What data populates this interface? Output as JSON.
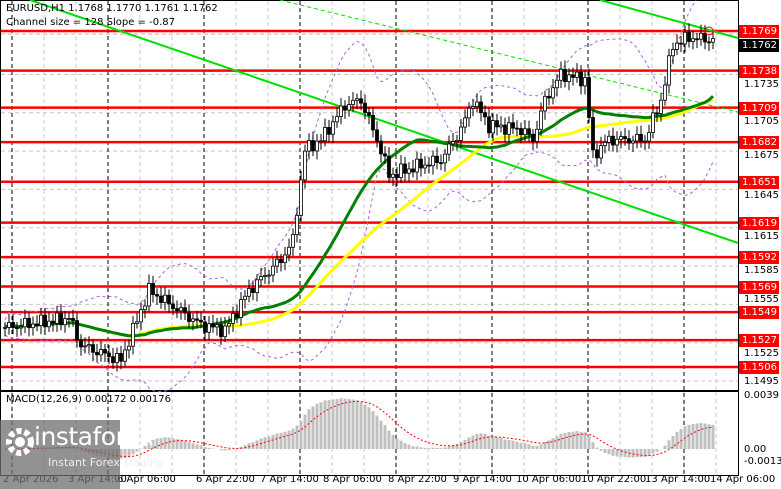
{
  "header": {
    "symbol_line": "EURUSD,H1  1.1768 1.1770 1.1761 1.1762",
    "channel_line": "Channel size = 128 Slope = -0.87"
  },
  "colors": {
    "level": "#ff0000",
    "fast_ma": "#008000",
    "slow_ma": "#ffff00",
    "channel": "#00e000",
    "bollinger": "#b060e0",
    "macd_hist": "#c0c0c0",
    "macd_signal": "#ff0000"
  },
  "price_axis": {
    "current_price": "1.1762",
    "levels": [
      "1.1769",
      "1.1738",
      "1.1709",
      "1.1682",
      "1.1651",
      "1.1619",
      "1.1592",
      "1.1569",
      "1.1549",
      "1.1527",
      "1.1506"
    ],
    "ticks": [
      "1.1735",
      "1.1705",
      "1.1675",
      "1.1645",
      "1.1615",
      "1.1585",
      "1.1555",
      "1.1525",
      "1.1495"
    ]
  },
  "time_axis": [
    "2 Apr 2026",
    "3 Apr 14:00",
    "6 Apr 06:00",
    "6 Apr 22:00",
    "7 Apr 14:00",
    "8 Apr 06:00",
    "8 Apr 22:00",
    "9 Apr 14:00",
    "10 Apr 06:00",
    "10 Apr 22:00",
    "13 Apr 14:00",
    "14 Apr 06:00"
  ],
  "macd": {
    "label": "MACD(12,26,9) 0.00172 0.00176",
    "ticks": [
      "0.0039",
      "0.00",
      "-0.00135"
    ]
  },
  "watermark": {
    "name": "instaforex",
    "tagline": "Instant Forex Trading"
  },
  "chart_data": {
    "type": "candlestick",
    "symbol": "EURUSD",
    "timeframe": "H1",
    "ylim": [
      1.1487,
      1.1793
    ],
    "price_path_bar_close": [
      [
        0,
        1.1537
      ],
      [
        14,
        1.1543
      ],
      [
        16,
        1.1545
      ],
      [
        19,
        1.1523
      ],
      [
        29,
        1.1511
      ],
      [
        31,
        1.1527
      ],
      [
        36,
        1.1566
      ],
      [
        49,
        1.1539
      ],
      [
        55,
        1.1535
      ],
      [
        61,
        1.1566
      ],
      [
        69,
        1.159
      ],
      [
        72,
        1.1605
      ],
      [
        75,
        1.1676
      ],
      [
        79,
        1.1684
      ],
      [
        85,
        1.1711
      ],
      [
        89,
        1.1715
      ],
      [
        94,
        1.1676
      ],
      [
        96,
        1.1656
      ],
      [
        104,
        1.1664
      ],
      [
        109,
        1.1668
      ],
      [
        114,
        1.1692
      ],
      [
        117,
        1.1715
      ],
      [
        121,
        1.1695
      ],
      [
        129,
        1.1692
      ],
      [
        132,
        1.1684
      ],
      [
        135,
        1.1715
      ],
      [
        139,
        1.1735
      ],
      [
        145,
        1.1731
      ],
      [
        147,
        1.1672
      ],
      [
        151,
        1.1684
      ],
      [
        160,
        1.1684
      ],
      [
        164,
        1.1715
      ],
      [
        167,
        1.1758
      ],
      [
        171,
        1.1764
      ],
      [
        177,
        1.1762
      ]
    ]
  }
}
